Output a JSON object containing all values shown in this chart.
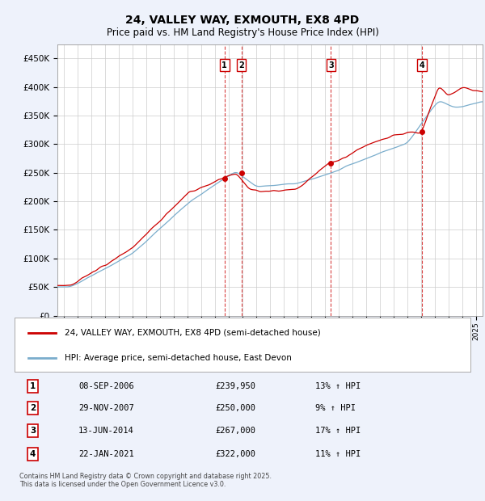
{
  "title": "24, VALLEY WAY, EXMOUTH, EX8 4PD",
  "subtitle": "Price paid vs. HM Land Registry's House Price Index (HPI)",
  "ylabel_vals": [
    0,
    50000,
    100000,
    150000,
    200000,
    250000,
    300000,
    350000,
    400000,
    450000
  ],
  "ylim": [
    0,
    475000
  ],
  "xlim_start": 1994.5,
  "xlim_end": 2025.5,
  "legend_line1": "24, VALLEY WAY, EXMOUTH, EX8 4PD (semi-detached house)",
  "legend_line2": "HPI: Average price, semi-detached house, East Devon",
  "red_color": "#cc0000",
  "blue_color": "#7aadcc",
  "sale_events": [
    {
      "num": 1,
      "date_x": 2006.69,
      "price": 239950,
      "label": "1",
      "date_str": "08-SEP-2006",
      "price_str": "£239,950",
      "pct": "13%",
      "dir": "↑"
    },
    {
      "num": 2,
      "date_x": 2007.92,
      "price": 250000,
      "label": "2",
      "date_str": "29-NOV-2007",
      "price_str": "£250,000",
      "pct": "9%",
      "dir": "↑"
    },
    {
      "num": 3,
      "date_x": 2014.45,
      "price": 267000,
      "label": "3",
      "date_str": "13-JUN-2014",
      "price_str": "£267,000",
      "pct": "17%",
      "dir": "↑"
    },
    {
      "num": 4,
      "date_x": 2021.07,
      "price": 322000,
      "label": "4",
      "date_str": "22-JAN-2021",
      "price_str": "£322,000",
      "pct": "11%",
      "dir": "↑"
    }
  ],
  "footnote": "Contains HM Land Registry data © Crown copyright and database right 2025.\nThis data is licensed under the Open Government Licence v3.0.",
  "background_color": "#eef2fb",
  "plot_bg_color": "#ffffff"
}
